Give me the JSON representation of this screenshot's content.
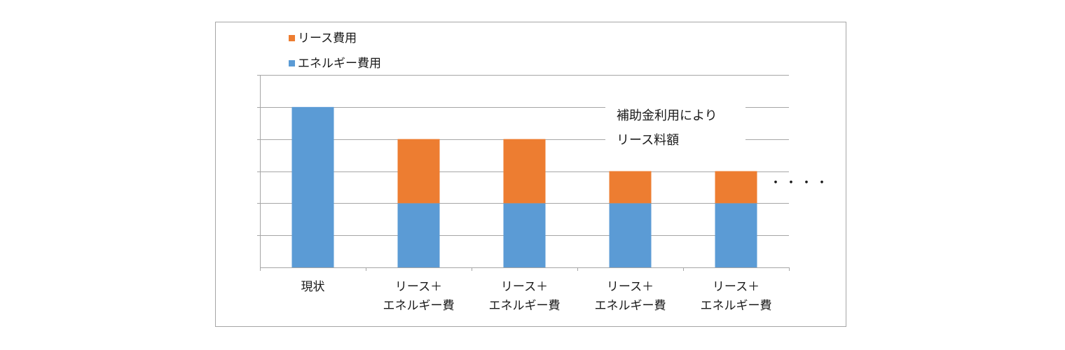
{
  "chart_data": {
    "type": "bar",
    "stacked": true,
    "title": "",
    "xlabel": "",
    "ylabel": "",
    "categories": [
      [
        "現状"
      ],
      [
        "リース＋",
        "エネルギー費"
      ],
      [
        "リース＋",
        "エネルギー費"
      ],
      [
        "リース＋",
        "エネルギー費"
      ],
      [
        "リース＋",
        "エネルギー費"
      ]
    ],
    "series": [
      {
        "name": "エネルギー費用",
        "color": "#5b9bd5",
        "values": [
          5,
          2,
          2,
          2,
          2
        ]
      },
      {
        "name": "リース費用",
        "color": "#ed7d31",
        "values": [
          0,
          2,
          2,
          1,
          1
        ]
      }
    ],
    "ylim": [
      0,
      6
    ],
    "y_gridlines": [
      1,
      2,
      3,
      4,
      5,
      6
    ],
    "grid": true,
    "y_tick_labels_shown": false,
    "legend": {
      "placement": "top-left",
      "order": [
        "リース費用",
        "エネルギー費用"
      ]
    },
    "annotations": [
      {
        "lines": [
          "補助金利用により",
          "リース料額"
        ]
      },
      {
        "text": "・・・・"
      }
    ]
  }
}
